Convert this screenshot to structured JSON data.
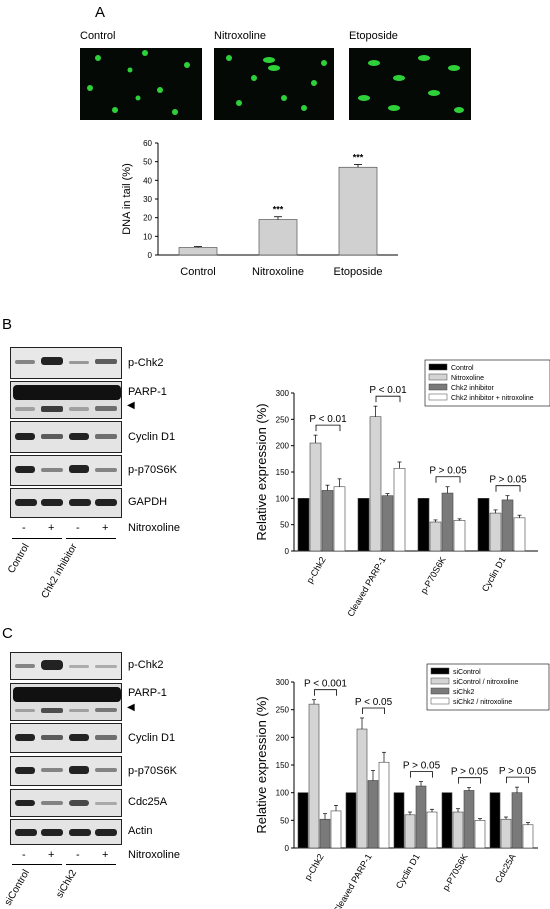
{
  "panelA": {
    "letter": "A",
    "micrographs": [
      "Control",
      "Nitroxoline",
      "Etoposide"
    ],
    "significance": [
      "***",
      "***"
    ]
  },
  "panelB": {
    "letter": "B",
    "blot_labels": [
      "p-Chk2",
      "PARP-1",
      "Cyclin D1",
      "p-p70S6K",
      "GAPDH"
    ],
    "lane_signs": [
      "-",
      "+",
      "-",
      "+"
    ],
    "treatment_label": "Nitroxoline",
    "groups": [
      "Control",
      "Chk2 inhibitor"
    ],
    "p_annotations": [
      "P < 0.01",
      "P < 0.01",
      "P > 0.05",
      "P > 0.05"
    ]
  },
  "panelC": {
    "letter": "C",
    "blot_labels": [
      "p-Chk2",
      "PARP-1",
      "Cyclin D1",
      "p-p70S6K",
      "Cdc25A",
      "Actin"
    ],
    "lane_signs": [
      "-",
      "+",
      "-",
      "+"
    ],
    "treatment_label": "Nitroxoline",
    "groups": [
      "siControl",
      "siChk2"
    ],
    "p_annotations": [
      "P < 0.001",
      "P < 0.05",
      "P > 0.05",
      "P > 0.05",
      "P > 0.05"
    ]
  },
  "colors": {
    "black": "#000000",
    "light": "#d4d4d4",
    "dark": "#7a7a7a",
    "white": "#ffffff",
    "comet": "#2fd13a"
  },
  "chart_data": [
    {
      "type": "bar",
      "categories": [
        "Control",
        "Nitroxoline",
        "Etoposide"
      ],
      "values": [
        4,
        19,
        47
      ],
      "errors": [
        0.5,
        1.5,
        1.5
      ],
      "ylabel": "DNA in tail (%)",
      "ylim": [
        0,
        60
      ],
      "yticks": [
        0,
        10,
        20,
        30,
        40,
        50,
        60
      ],
      "color": "#d0d0d0"
    },
    {
      "type": "bar",
      "categories": [
        "p-Chk2",
        "Cleaved PARP-1",
        "p-P70S6K",
        "Cyclin D1"
      ],
      "ylabel": "Relative expression (%)",
      "ylim": [
        0,
        300
      ],
      "yticks": [
        0,
        50,
        100,
        150,
        200,
        250,
        300
      ],
      "legend_position": "top-right",
      "series": [
        {
          "name": "Control",
          "values": [
            100,
            100,
            100,
            100
          ],
          "errors": [
            0,
            0,
            0,
            0
          ],
          "color": "#000000"
        },
        {
          "name": "Nitroxoline",
          "values": [
            205,
            255,
            55,
            72
          ],
          "errors": [
            15,
            20,
            4,
            6
          ],
          "color": "#d4d4d4"
        },
        {
          "name": "Chk2 inhibitor",
          "values": [
            115,
            105,
            110,
            97
          ],
          "errors": [
            10,
            4,
            12,
            8
          ],
          "color": "#7a7a7a"
        },
        {
          "name": "Chk2 inhibitor + nitroxoline",
          "values": [
            122,
            157,
            58,
            63
          ],
          "errors": [
            15,
            12,
            3,
            5
          ],
          "color": "#ffffff"
        }
      ]
    },
    {
      "type": "bar",
      "categories": [
        "p-Chk2",
        "Cleaved PARP-1",
        "Cyclin D1",
        "p-P70S6K",
        "Cdc25A"
      ],
      "ylabel": "Relative expression (%)",
      "ylim": [
        0,
        300
      ],
      "yticks": [
        0,
        50,
        100,
        150,
        200,
        250,
        300
      ],
      "legend_position": "top-right",
      "series": [
        {
          "name": "siControl",
          "values": [
            100,
            100,
            100,
            100,
            100
          ],
          "errors": [
            0,
            0,
            0,
            0,
            0
          ],
          "color": "#000000"
        },
        {
          "name": "siControl / nitroxoline",
          "values": [
            260,
            215,
            60,
            65,
            52
          ],
          "errors": [
            8,
            20,
            5,
            6,
            4
          ],
          "color": "#d4d4d4"
        },
        {
          "name": "siChk2",
          "values": [
            52,
            122,
            112,
            104,
            100
          ],
          "errors": [
            10,
            18,
            8,
            5,
            10
          ],
          "color": "#7a7a7a"
        },
        {
          "name": "siChk2 / nitroxoline",
          "values": [
            67,
            155,
            65,
            50,
            42
          ],
          "errors": [
            10,
            18,
            5,
            3,
            4
          ],
          "color": "#ffffff"
        }
      ]
    }
  ]
}
